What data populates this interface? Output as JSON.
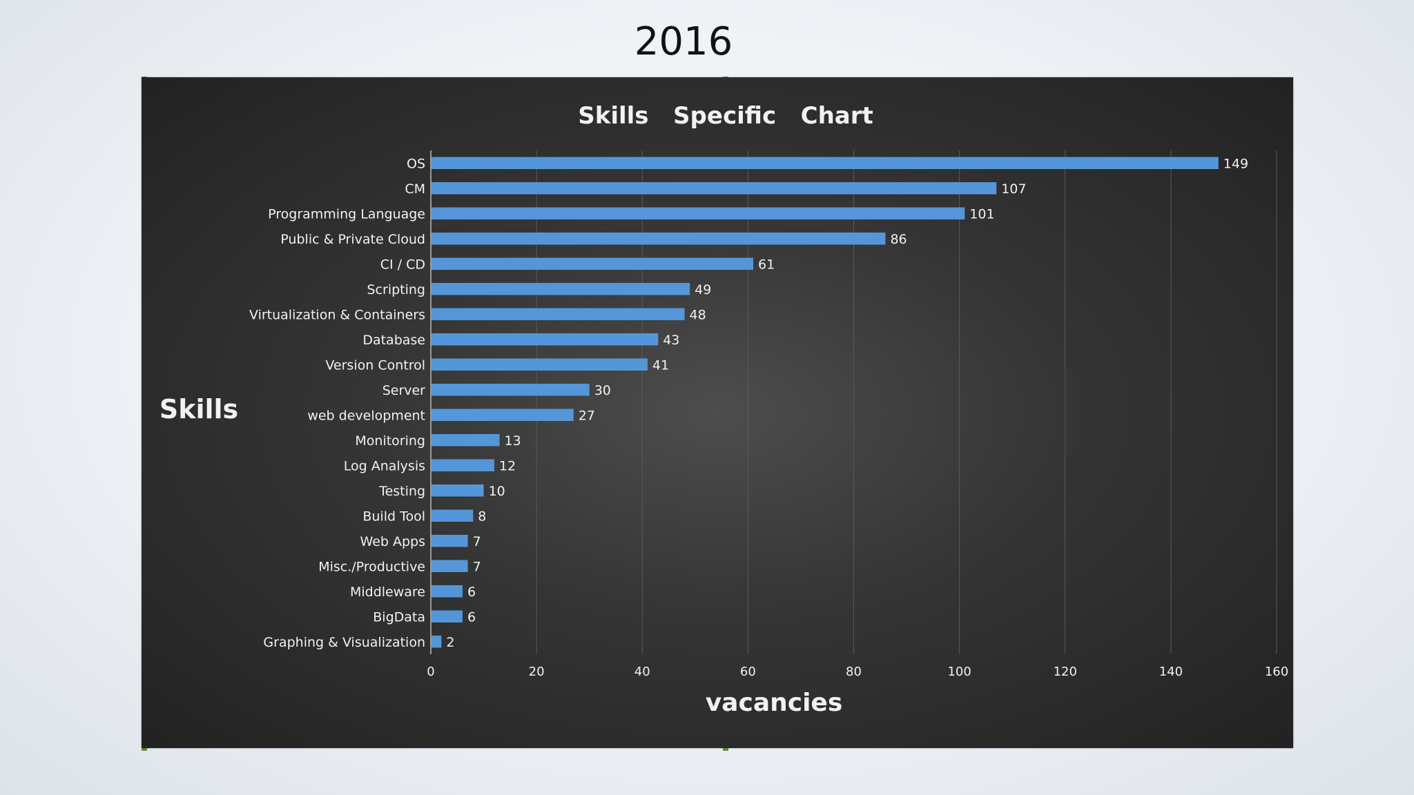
{
  "slide": {
    "title": "2016"
  },
  "colors": {
    "bar": "#5596d8",
    "text": "#f2f2f2",
    "panel": "#2e2e2e",
    "grid": "#5a5a5a"
  },
  "chart_data": {
    "type": "bar",
    "orientation": "horizontal",
    "title": "Skills   Specific   Chart",
    "xlabel": "vacancies",
    "ylabel": "Skills",
    "xlim": [
      0,
      160
    ],
    "xticks": [
      0,
      20,
      40,
      60,
      80,
      100,
      120,
      140,
      160
    ],
    "grid": true,
    "categories": [
      "OS",
      "CM",
      "Programming Language",
      "Public & Private Cloud",
      "CI / CD",
      "Scripting",
      "Virtualization & Containers",
      "Database",
      "Version Control",
      "Server",
      "web development",
      "Monitoring",
      "Log Analysis",
      "Testing",
      "Build Tool",
      "Web Apps",
      "Misc./Productive",
      "Middleware",
      "BigData",
      "Graphing & Visualization"
    ],
    "values": [
      149,
      107,
      101,
      86,
      61,
      49,
      48,
      43,
      41,
      30,
      27,
      13,
      12,
      10,
      8,
      7,
      7,
      6,
      6,
      2
    ]
  }
}
